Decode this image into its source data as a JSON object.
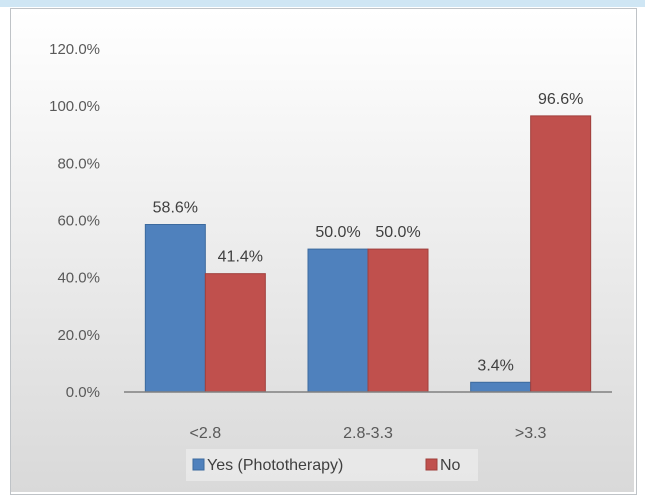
{
  "chart_data": {
    "type": "bar",
    "title": "",
    "xlabel": "",
    "ylabel": "",
    "categories": [
      "<2.8",
      "2.8-3.3",
      ">3.3"
    ],
    "series": [
      {
        "name": "Yes (Phototherapy)",
        "values": [
          58.6,
          50.0,
          3.4
        ],
        "labels": [
          "58.6%",
          "50.0%",
          "3.4%"
        ],
        "color": "#4f81bd"
      },
      {
        "name": "No",
        "values": [
          41.4,
          50.0,
          96.6
        ],
        "labels": [
          "41.4%",
          "50.0%",
          "96.6%"
        ],
        "color": "#c0504d"
      }
    ],
    "ylim": [
      0,
      120
    ],
    "yticks": [
      "0.0%",
      "20.0%",
      "40.0%",
      "60.0%",
      "80.0%",
      "100.0%",
      "120.0%"
    ],
    "grid": false,
    "legend": "bottom",
    "background": [
      "#ffffff",
      "#d9d9d9"
    ]
  }
}
